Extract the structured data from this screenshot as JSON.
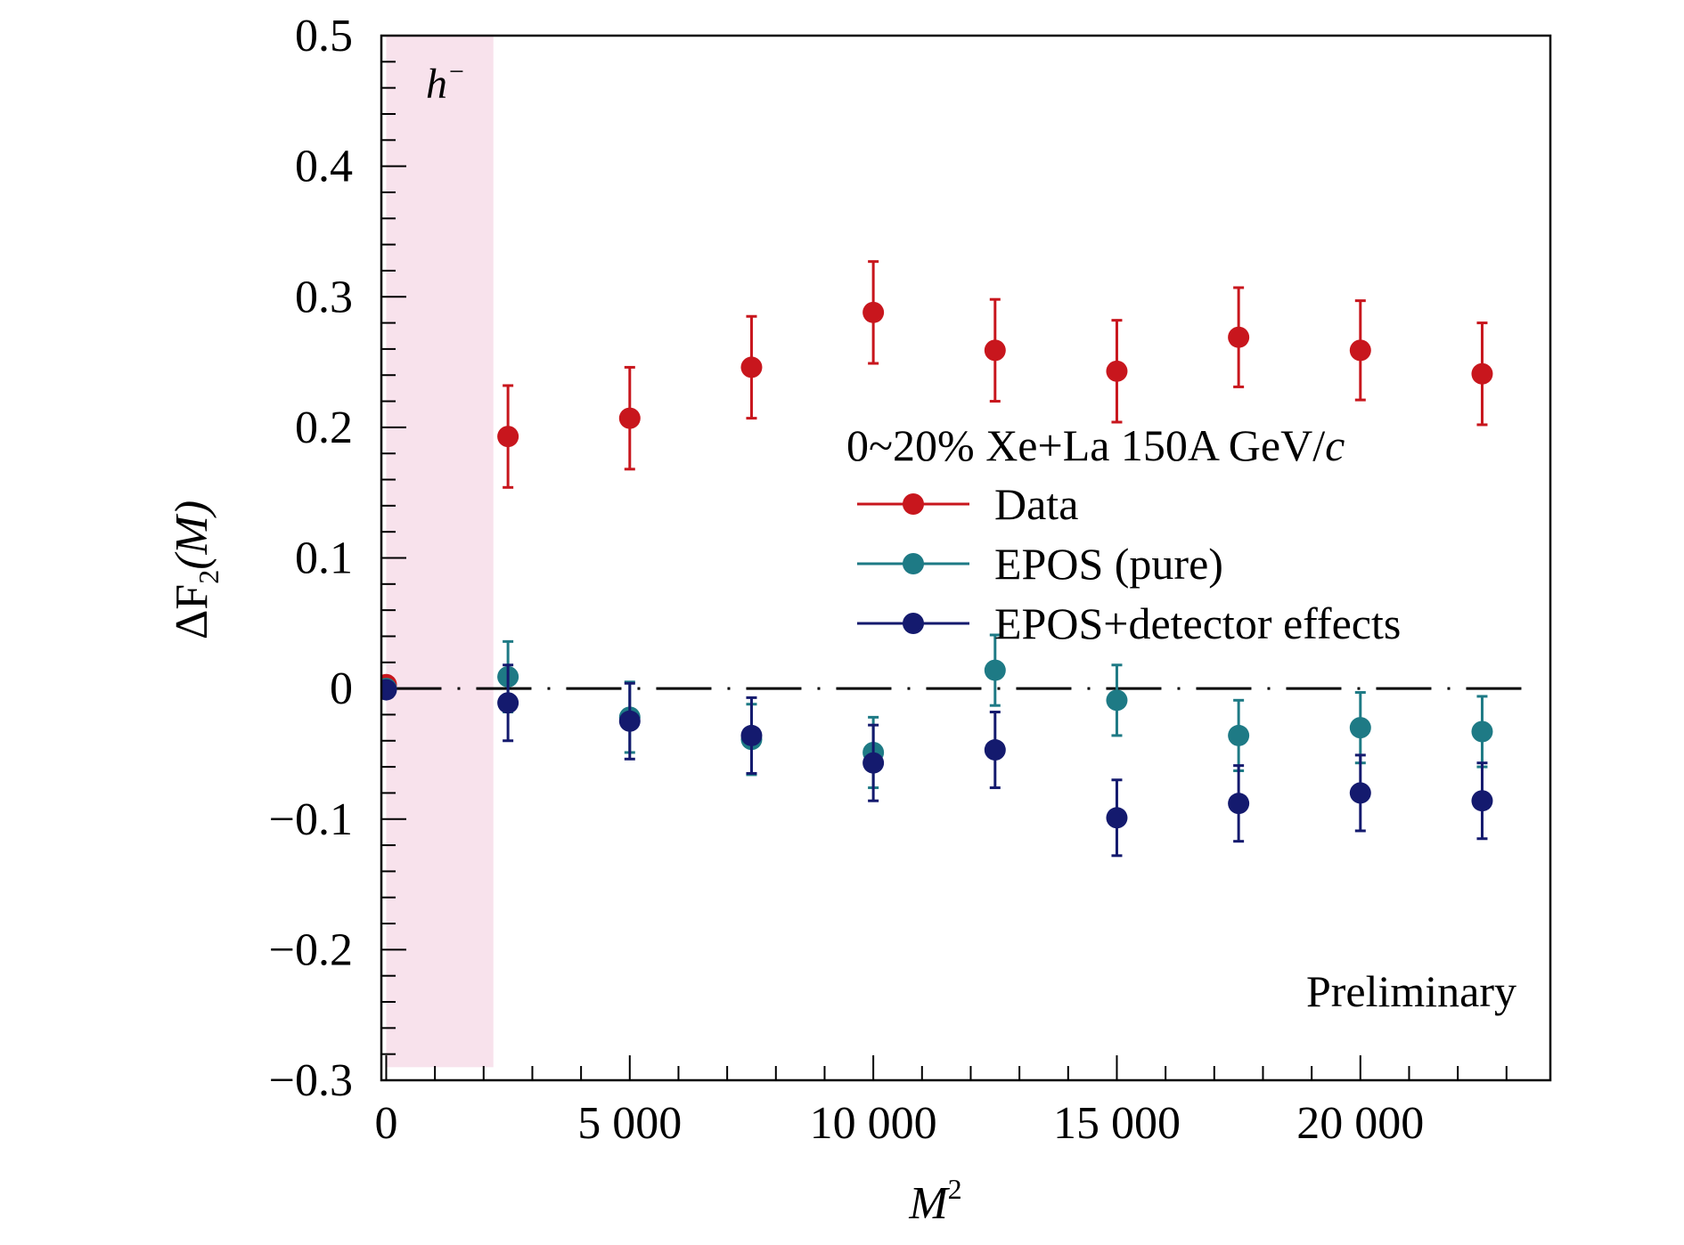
{
  "chart_data": {
    "type": "scatter",
    "title": "",
    "xlabel": "M",
    "xlabel_superscript": "2",
    "ylabel_parts": [
      "ΔF",
      "2",
      "(M)"
    ],
    "xlim": [
      -100,
      23900
    ],
    "ylim": [
      -0.3,
      0.5
    ],
    "x_ticks": [
      0,
      5000,
      10000,
      15000,
      20000
    ],
    "x_tick_labels": [
      "0",
      "5 000",
      "10 000",
      "15 000",
      "20 000"
    ],
    "y_ticks": [
      -0.3,
      -0.2,
      -0.1,
      0,
      0.1,
      0.2,
      0.3,
      0.4,
      0.5
    ],
    "y_tick_labels": [
      "−0.3",
      "−0.2",
      "−0.1",
      "0",
      "0.1",
      "0.2",
      "0.3",
      "0.4",
      "0.5"
    ],
    "grid": false,
    "shaded_region": {
      "x": [
        0,
        2200
      ],
      "color": "#f8e2ec"
    },
    "shaded_label": "h",
    "shaded_label_superscript": "−",
    "reference_line": {
      "y": 0,
      "style": "dash-dot",
      "color": "#000000"
    },
    "legend": {
      "placement": "right",
      "header_parts": [
        "0~20% Xe+La 150A GeV/",
        "c"
      ]
    },
    "annotation": "Preliminary",
    "series": [
      {
        "name": "Data",
        "color": "#c8161d",
        "x": [
          0,
          2500,
          5000,
          7500,
          10000,
          12500,
          15000,
          17500,
          20000,
          22500
        ],
        "y": [
          0.003,
          0.193,
          0.207,
          0.246,
          0.288,
          0.259,
          0.243,
          0.269,
          0.259,
          0.241
        ],
        "err": [
          0.003,
          0.039,
          0.039,
          0.039,
          0.039,
          0.039,
          0.039,
          0.038,
          0.038,
          0.039
        ]
      },
      {
        "name": "EPOS (pure)",
        "color": "#1e7a85",
        "x": [
          0,
          2500,
          5000,
          7500,
          10000,
          12500,
          15000,
          17500,
          20000,
          22500
        ],
        "y": [
          0.0,
          0.009,
          -0.022,
          -0.039,
          -0.049,
          0.014,
          -0.009,
          -0.036,
          -0.03,
          -0.033
        ],
        "err": [
          0.002,
          0.027,
          0.027,
          0.027,
          0.027,
          0.027,
          0.027,
          0.027,
          0.027,
          0.027
        ]
      },
      {
        "name": "EPOS+detector effects",
        "color": "#141a6e",
        "x": [
          0,
          2500,
          5000,
          7500,
          10000,
          12500,
          15000,
          17500,
          20000,
          22500
        ],
        "y": [
          -0.001,
          -0.011,
          -0.025,
          -0.036,
          -0.057,
          -0.047,
          -0.099,
          -0.088,
          -0.08,
          -0.086
        ],
        "err": [
          0.002,
          0.029,
          0.029,
          0.029,
          0.029,
          0.029,
          0.029,
          0.029,
          0.029,
          0.029
        ]
      }
    ]
  }
}
